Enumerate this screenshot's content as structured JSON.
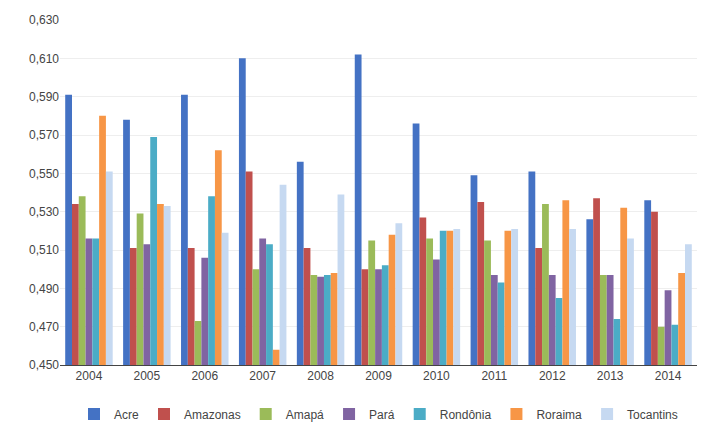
{
  "chart_data": {
    "type": "bar",
    "categories": [
      "2004",
      "2005",
      "2006",
      "2007",
      "2008",
      "2009",
      "2010",
      "2011",
      "2012",
      "2013",
      "2014"
    ],
    "series": [
      {
        "name": "Acre",
        "color": "#4472C4",
        "values": [
          0.591,
          0.578,
          0.591,
          0.61,
          0.556,
          0.612,
          0.576,
          0.549,
          0.551,
          0.526,
          0.536
        ]
      },
      {
        "name": "Amazonas",
        "color": "#C0504D",
        "values": [
          0.534,
          0.511,
          0.511,
          0.551,
          0.511,
          0.5,
          0.527,
          0.535,
          0.511,
          0.537,
          0.53
        ]
      },
      {
        "name": "Amapá",
        "color": "#9BBB59",
        "values": [
          0.538,
          0.529,
          0.473,
          0.5,
          0.497,
          0.515,
          0.516,
          0.515,
          0.534,
          0.497,
          0.47
        ]
      },
      {
        "name": "Pará",
        "color": "#8064A2",
        "values": [
          0.516,
          0.513,
          0.506,
          0.516,
          0.496,
          0.5,
          0.505,
          0.497,
          0.497,
          0.497,
          0.489
        ]
      },
      {
        "name": "Rondônia",
        "color": "#4BACC6",
        "values": [
          0.516,
          0.569,
          0.538,
          0.513,
          0.497,
          0.502,
          0.52,
          0.493,
          0.485,
          0.474,
          0.471
        ]
      },
      {
        "name": "Roraima",
        "color": "#F79646",
        "values": [
          0.58,
          0.534,
          0.562,
          0.458,
          0.498,
          0.518,
          0.52,
          0.52,
          0.536,
          0.532,
          0.498
        ]
      },
      {
        "name": "Tocantins",
        "color": "#C6D9F1",
        "values": [
          0.551,
          0.533,
          0.519,
          0.544,
          0.539,
          0.524,
          0.521,
          0.521,
          0.521,
          0.516,
          0.513
        ]
      }
    ],
    "ylim": [
      0.45,
      0.63
    ],
    "yticks": [
      {
        "value": 0.45,
        "label": "0,450"
      },
      {
        "value": 0.47,
        "label": "0,470"
      },
      {
        "value": 0.49,
        "label": "0,490"
      },
      {
        "value": 0.51,
        "label": "0,510"
      },
      {
        "value": 0.53,
        "label": "0,530"
      },
      {
        "value": 0.55,
        "label": "0,550"
      },
      {
        "value": 0.57,
        "label": "0,570"
      },
      {
        "value": 0.59,
        "label": "0,590"
      },
      {
        "value": 0.61,
        "label": "0,610"
      },
      {
        "value": 0.63,
        "label": "0,630"
      }
    ],
    "grid": true,
    "legend": "bottom"
  }
}
